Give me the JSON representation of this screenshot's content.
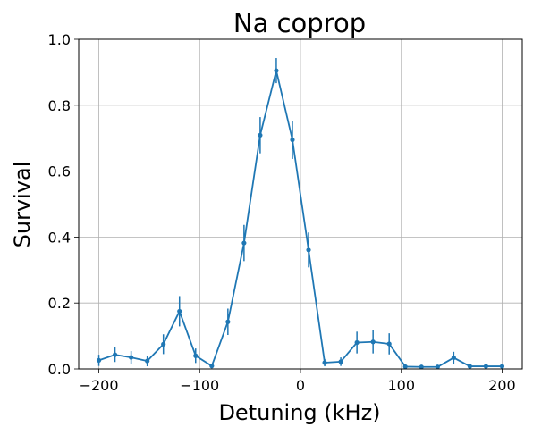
{
  "chart_data": {
    "type": "line",
    "title": "Na coprop",
    "xlabel": "Detuning (kHz)",
    "ylabel": "Survival",
    "xlim": [
      -220,
      220
    ],
    "ylim": [
      0.0,
      1.0
    ],
    "xticks": [
      -200,
      -100,
      0,
      100,
      200
    ],
    "yticks": [
      0.0,
      0.2,
      0.4,
      0.6,
      0.8,
      1.0
    ],
    "xtick_labels": [
      "−200",
      "−100",
      "0",
      "100",
      "200"
    ],
    "ytick_labels": [
      "0.0",
      "0.2",
      "0.4",
      "0.6",
      "0.8",
      "1.0"
    ],
    "grid": true,
    "series": [
      {
        "color": "#1f77b4",
        "x": [
          -200,
          -184,
          -168,
          -152,
          -136,
          -120,
          -104,
          -88,
          -72,
          -56,
          -40,
          -24,
          -8,
          8,
          24,
          40,
          56,
          72,
          88,
          104,
          120,
          136,
          152,
          168,
          184,
          200
        ],
        "y": [
          0.026,
          0.043,
          0.035,
          0.024,
          0.075,
          0.175,
          0.04,
          0.009,
          0.143,
          0.382,
          0.709,
          0.905,
          0.695,
          0.361,
          0.019,
          0.022,
          0.08,
          0.082,
          0.076,
          0.007,
          0.006,
          0.006,
          0.034,
          0.008,
          0.008,
          0.008
        ],
        "yerr": [
          0.017,
          0.022,
          0.019,
          0.016,
          0.03,
          0.046,
          0.022,
          0.007,
          0.04,
          0.055,
          0.055,
          0.038,
          0.058,
          0.053,
          0.011,
          0.013,
          0.033,
          0.035,
          0.032,
          0.004,
          0.003,
          0.003,
          0.018,
          0.004,
          0.004,
          0.004
        ]
      }
    ]
  }
}
